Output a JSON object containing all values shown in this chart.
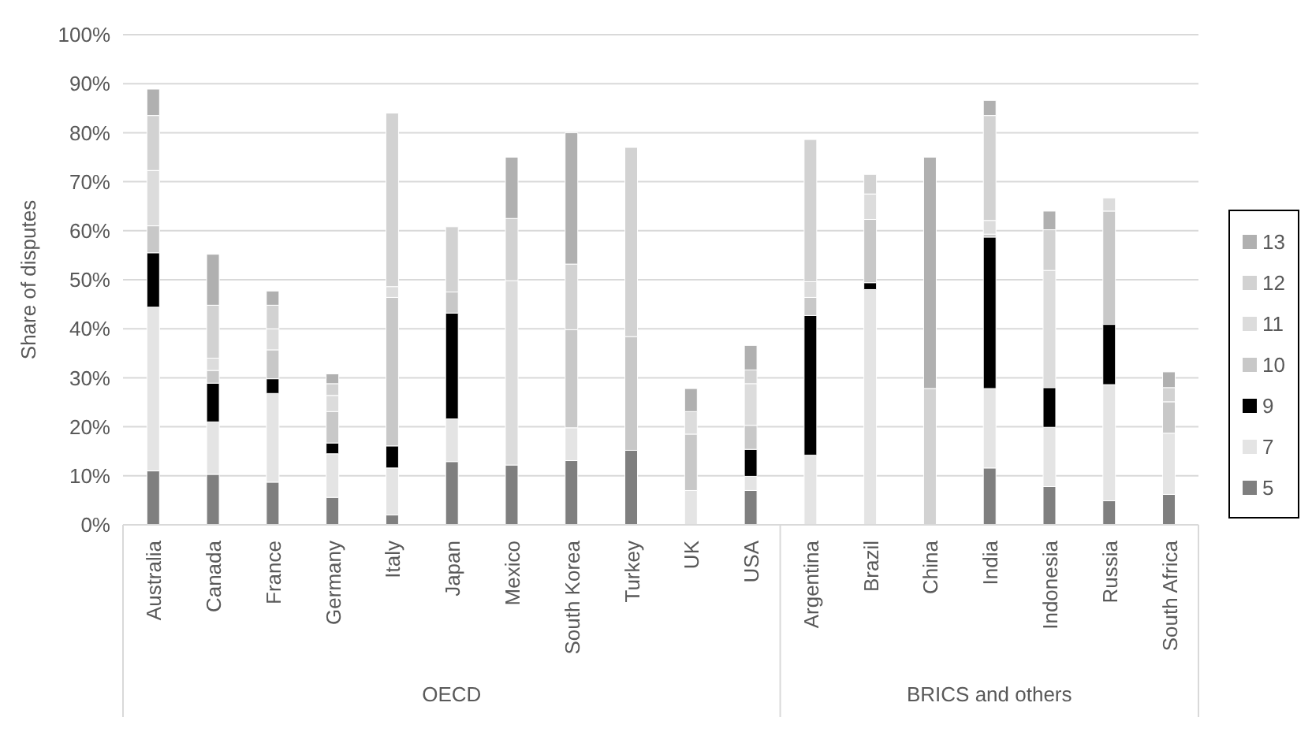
{
  "chart_data": {
    "type": "bar",
    "stacked": true,
    "ylabel": "Share of disputes",
    "categories": [
      "Australia",
      "Canada",
      "France",
      "Germany",
      "Italy",
      "Japan",
      "Mexico",
      "South Korea",
      "Turkey",
      "UK",
      "USA",
      "Argentina",
      "Brazil",
      "China",
      "India",
      "Indonesia",
      "Russia",
      "South Africa"
    ],
    "series": [
      {
        "name": "5",
        "color": "#7f7f7f",
        "values": [
          11,
          10.3,
          8.7,
          5.6,
          2,
          12.9,
          12.2,
          13.1,
          15.2,
          0,
          7,
          0,
          0,
          0,
          11.6,
          7.8,
          4.9,
          6.2
        ]
      },
      {
        "name": "7",
        "color": "#e4e4e4",
        "values": [
          33.4,
          10.7,
          18.1,
          8.9,
          9.6,
          8.7,
          0,
          6.7,
          0,
          7,
          2.9,
          14.2,
          48,
          0,
          16.2,
          12.1,
          23.7,
          12.5
        ]
      },
      {
        "name": "9",
        "color": "#000000",
        "values": [
          11.1,
          7.9,
          3,
          2.2,
          4.5,
          21.6,
          0,
          0,
          0,
          0,
          5.5,
          28.5,
          1.4,
          0,
          30.9,
          8.1,
          12.3,
          0
        ]
      },
      {
        "name": "10",
        "color": "#c8c8c8",
        "values": [
          5.5,
          2.6,
          5.9,
          6.4,
          30.3,
          4.3,
          0,
          20,
          23.2,
          11.5,
          4.9,
          3.7,
          12.9,
          0,
          0.6,
          0,
          23.1,
          6.4
        ]
      },
      {
        "name": "11",
        "color": "#dcdcdc",
        "values": [
          11.3,
          2.5,
          4.3,
          3.3,
          2.2,
          0,
          37.6,
          0,
          0,
          4.6,
          8.5,
          3.2,
          5.2,
          0,
          2.8,
          23.9,
          2.7,
          0
        ]
      },
      {
        "name": "12",
        "color": "#d2d2d2",
        "values": [
          11.2,
          10.8,
          4.8,
          2.4,
          35.4,
          13.3,
          12.7,
          13.4,
          38.6,
          0,
          2.8,
          29,
          4,
          27.8,
          21.4,
          8.3,
          0,
          2.9
        ]
      },
      {
        "name": "13",
        "color": "#b0b0b0",
        "values": [
          5.4,
          10.4,
          2.9,
          2,
          0,
          0,
          12.5,
          26.8,
          0,
          4.7,
          5,
          0,
          0,
          47.2,
          3.1,
          3.8,
          0,
          3.2
        ]
      }
    ],
    "ylim": [
      0,
      100
    ],
    "yticks": [
      {
        "value": 0,
        "label": "0%"
      },
      {
        "value": 10,
        "label": "10%"
      },
      {
        "value": 20,
        "label": "20%"
      },
      {
        "value": 30,
        "label": "30%"
      },
      {
        "value": 40,
        "label": "40%"
      },
      {
        "value": 50,
        "label": "50%"
      },
      {
        "value": 60,
        "label": "60%"
      },
      {
        "value": 70,
        "label": "70%"
      },
      {
        "value": 80,
        "label": "80%"
      },
      {
        "value": 90,
        "label": "90%"
      },
      {
        "value": 100,
        "label": "100%"
      }
    ],
    "grid": "y",
    "legend": "right",
    "annotations": [
      "OECD",
      "BRICS and others"
    ]
  }
}
